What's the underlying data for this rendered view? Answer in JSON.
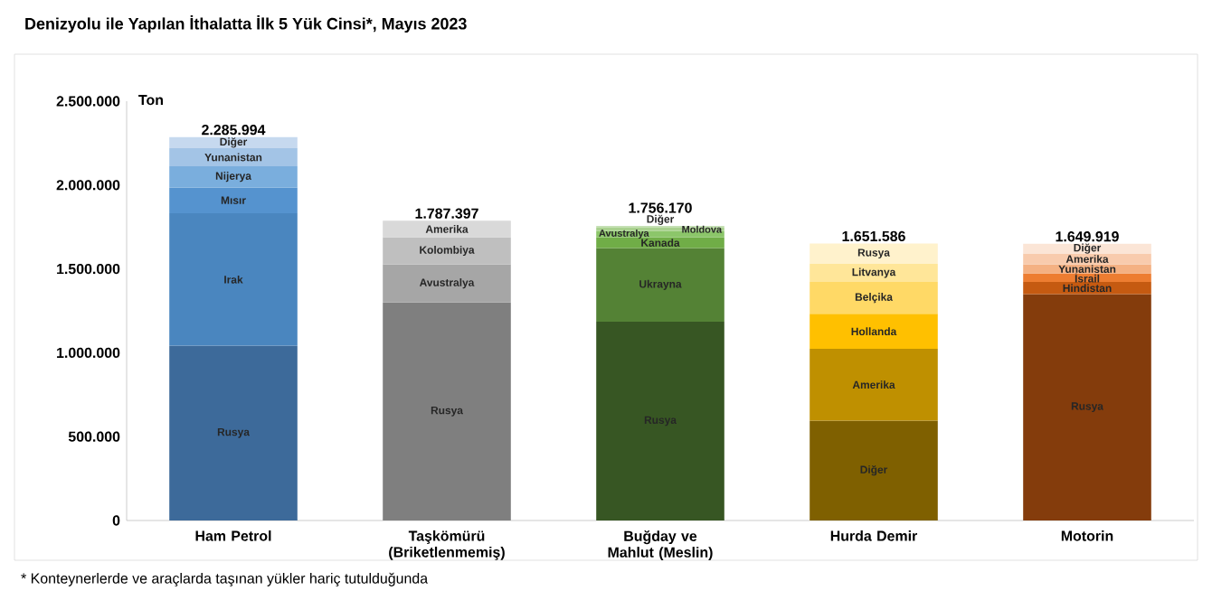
{
  "chart_data": {
    "type": "bar",
    "stacked": true,
    "title": "Denizyolu ile Yapılan İthalatta İlk 5 Yük Cinsi*, Mayıs 2023",
    "ylabel": "Ton",
    "categories": [
      "Ham Petrol",
      "Taşkömürü (Briketlenmemiş)",
      "Buğday ve Mahlut (Meslin)",
      "Hurda Demir",
      "Motorin"
    ],
    "series": [
      {
        "values": [
          1042000,
          1300000,
          1185000,
          596000,
          1350000
        ],
        "colors": [
          "#3d6a9a",
          "#7f7f7f",
          "#375623",
          "#7f6000",
          "#843c0c"
        ],
        "value_labels": [
          "Rusya",
          "Rusya",
          "Rusya",
          "Diğer",
          "Rusya"
        ]
      },
      {
        "values": [
          790000,
          227000,
          439000,
          428000,
          72000
        ],
        "colors": [
          "#4a86bf",
          "#a6a6a6",
          "#548235",
          "#bf9000",
          "#c55a11"
        ],
        "value_labels": [
          "Irak",
          "Avustralya",
          "Ukrayna",
          "Amerika",
          "Hindistan"
        ]
      },
      {
        "values": [
          154000,
          162000,
          65000,
          208000,
          51000
        ],
        "colors": [
          "#5593cf",
          "#bfbfbf",
          "#70ad47",
          "#ffc000",
          "#ed7d31"
        ],
        "value_labels": [
          "Mısır",
          "Kolombiya",
          "Kanada",
          "Hollanda",
          "İsrail"
        ]
      },
      {
        "values": [
          126000,
          98397,
          38000,
          190000,
          54000
        ],
        "colors": [
          "#7aaedd",
          "#d9d9d9",
          "#8cc66a",
          "#ffd966",
          "#f4b183"
        ],
        "value_labels": [
          "Nijerya",
          "Amerika",
          "Avustralya",
          "Belçika",
          "Yunanistan"
        ]
      },
      {
        "values": [
          108000,
          null,
          19000,
          108000,
          65000
        ],
        "colors": [
          "#a3c4e6",
          null,
          "#a9d18e",
          "#ffe699",
          "#f8cbad"
        ],
        "value_labels": [
          "Yunanistan",
          null,
          "Moldova",
          "Litvanya",
          "Amerika"
        ]
      },
      {
        "values": [
          65994,
          null,
          10170,
          121586,
          57919
        ],
        "colors": [
          "#c6d9ef",
          null,
          "#c5e0b4",
          "#fff2cc",
          "#fbe5d6"
        ],
        "value_labels": [
          "Diğer",
          null,
          "Diğer",
          "Rusya",
          "Diğer"
        ]
      }
    ],
    "totals": [
      "2.285.994",
      "1.787.397",
      "1.756.170",
      "1.651.586",
      "1.649.919"
    ],
    "ylim": [
      0,
      2500000
    ],
    "yticks": [
      0,
      {
        "value": 500000,
        "label": "500.000"
      },
      {
        "value": 1000000,
        "label": "1.000.000"
      },
      {
        "value": 1500000,
        "label": "1.500.000"
      },
      {
        "value": 2000000,
        "label": "2.000.000"
      },
      {
        "value": 2500000,
        "label": "2.500.000"
      }
    ],
    "annotations": [
      "* Konteynerlerde ve araçlarda taşınan yükler hariç tutulduğunda"
    ]
  }
}
